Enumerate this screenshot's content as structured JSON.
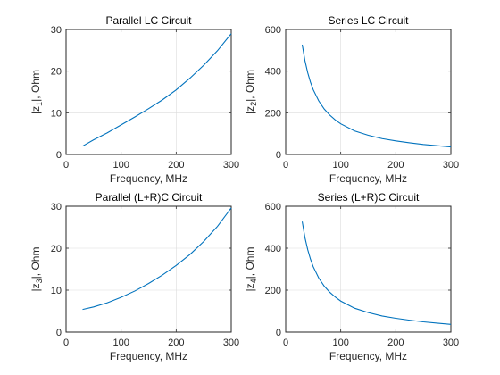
{
  "chart_data": [
    {
      "type": "line",
      "title": "Parallel LC Circuit",
      "xlabel": "Frequency, MHz",
      "ylabel": {
        "pre": "|z",
        "sub": "1",
        "post": "|, Ohm"
      },
      "xlim": [
        0,
        300
      ],
      "ylim": [
        0,
        30
      ],
      "xticks": [
        "0",
        "100",
        "200",
        "300"
      ],
      "yticks": [
        "0",
        "10",
        "20",
        "30"
      ],
      "grid": true,
      "series": [
        {
          "color": "#0072bd",
          "x": [
            30,
            50,
            75,
            100,
            125,
            150,
            175,
            200,
            225,
            250,
            275,
            300
          ],
          "y": [
            2.0,
            3.5,
            5.2,
            7.1,
            9.0,
            11.0,
            13.1,
            15.5,
            18.3,
            21.4,
            24.9,
            29.0
          ]
        }
      ]
    },
    {
      "type": "line",
      "title": "Series LC Circuit",
      "xlabel": "Frequency, MHz",
      "ylabel": {
        "pre": "|z",
        "sub": "2",
        "post": "|, Ohm"
      },
      "xlim": [
        0,
        300
      ],
      "ylim": [
        0,
        600
      ],
      "xticks": [
        "0",
        "100",
        "200",
        "300"
      ],
      "yticks": [
        "0",
        "200",
        "400",
        "600"
      ],
      "grid": true,
      "series": [
        {
          "color": "#0072bd",
          "x": [
            30,
            35,
            40,
            45,
            50,
            60,
            70,
            80,
            90,
            100,
            125,
            150,
            175,
            200,
            225,
            250,
            275,
            300
          ],
          "y": [
            527,
            450,
            392,
            347,
            311,
            257,
            218,
            189,
            166,
            147,
            113,
            92,
            76,
            65,
            56,
            48,
            42,
            36
          ]
        }
      ]
    },
    {
      "type": "line",
      "title": "Parallel (L+R)C Circuit",
      "xlabel": "Frequency, MHz",
      "ylabel": {
        "pre": "|z",
        "sub": "3",
        "post": "|, Ohm"
      },
      "xlim": [
        0,
        300
      ],
      "ylim": [
        0,
        30
      ],
      "xticks": [
        "0",
        "100",
        "200",
        "300"
      ],
      "yticks": [
        "0",
        "10",
        "20",
        "30"
      ],
      "grid": true,
      "series": [
        {
          "color": "#0072bd",
          "x": [
            30,
            50,
            75,
            100,
            125,
            150,
            175,
            200,
            225,
            250,
            275,
            300
          ],
          "y": [
            5.4,
            6.0,
            7.0,
            8.3,
            9.8,
            11.6,
            13.6,
            15.9,
            18.5,
            21.6,
            25.2,
            29.6
          ]
        }
      ]
    },
    {
      "type": "line",
      "title": "Series (L+R)C Circuit",
      "xlabel": "Frequency, MHz",
      "ylabel": {
        "pre": "|z",
        "sub": "4",
        "post": "|, Ohm"
      },
      "xlim": [
        0,
        300
      ],
      "ylim": [
        0,
        600
      ],
      "xticks": [
        "0",
        "100",
        "200",
        "300"
      ],
      "yticks": [
        "0",
        "200",
        "400",
        "600"
      ],
      "grid": true,
      "series": [
        {
          "color": "#0072bd",
          "x": [
            30,
            35,
            40,
            45,
            50,
            60,
            70,
            80,
            90,
            100,
            125,
            150,
            175,
            200,
            225,
            250,
            275,
            300
          ],
          "y": [
            527,
            450,
            393,
            348,
            312,
            258,
            219,
            190,
            167,
            148,
            114,
            93,
            77,
            66,
            57,
            49,
            43,
            37
          ]
        }
      ]
    }
  ]
}
